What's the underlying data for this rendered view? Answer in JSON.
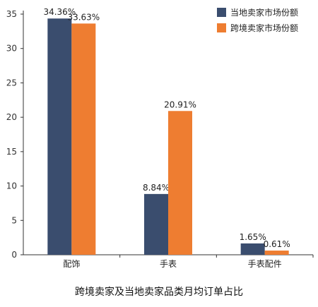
{
  "chart_data": {
    "type": "bar",
    "categories": [
      "配饰",
      "手表",
      "手表配件"
    ],
    "series": [
      {
        "name": "当地卖家市场份额",
        "values": [
          34.36,
          8.84,
          1.65
        ],
        "labels": [
          "34.36%",
          "8.84%",
          "1.65%"
        ],
        "color": "#3a4d6e"
      },
      {
        "name": "跨境卖家市场份额",
        "values": [
          33.63,
          20.91,
          0.61
        ],
        "labels": [
          "33.63%",
          "20.91%",
          "0.61%"
        ],
        "color": "#ee7d31"
      }
    ],
    "ylim": [
      0,
      35
    ],
    "yticks": [
      "0",
      "5",
      "10",
      "15",
      "20",
      "25",
      "30",
      "35"
    ],
    "grid": false,
    "legend": "top-right",
    "caption": "跨境卖家及当地卖家品类月均订单占比"
  }
}
